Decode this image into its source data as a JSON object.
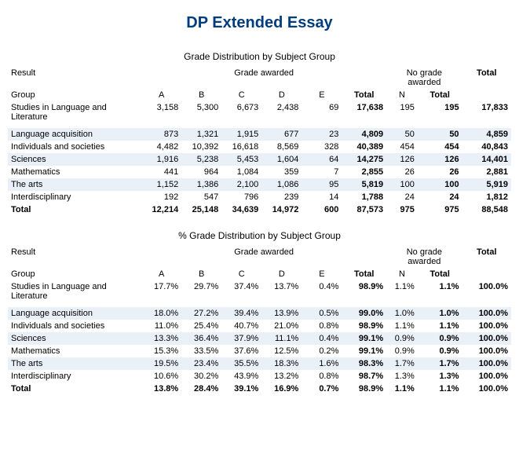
{
  "title": "DP Extended Essay",
  "table1": {
    "section": "Grade Distribution by Subject Group",
    "header": {
      "result": "Result",
      "grade_awarded": "Grade awarded",
      "no_grade_awarded": "No grade awarded",
      "total": "Total",
      "group": "Group",
      "cols": [
        "A",
        "B",
        "C",
        "D",
        "E",
        "Total",
        "N",
        "Total"
      ]
    },
    "rows": [
      {
        "label": "Studies in Language and Literature",
        "a": "3,158",
        "b": "5,300",
        "c": "6,673",
        "d": "2,438",
        "e": "69",
        "tot": "17,638",
        "n": "195",
        "ntot": "195",
        "grand": "17,833",
        "shade": false
      },
      {
        "label": "Language acquisition",
        "a": "873",
        "b": "1,321",
        "c": "1,915",
        "d": "677",
        "e": "23",
        "tot": "4,809",
        "n": "50",
        "ntot": "50",
        "grand": "4,859",
        "shade": true
      },
      {
        "label": "Individuals and societies",
        "a": "4,482",
        "b": "10,392",
        "c": "16,618",
        "d": "8,569",
        "e": "328",
        "tot": "40,389",
        "n": "454",
        "ntot": "454",
        "grand": "40,843",
        "shade": false
      },
      {
        "label": "Sciences",
        "a": "1,916",
        "b": "5,238",
        "c": "5,453",
        "d": "1,604",
        "e": "64",
        "tot": "14,275",
        "n": "126",
        "ntot": "126",
        "grand": "14,401",
        "shade": true
      },
      {
        "label": "Mathematics",
        "a": "441",
        "b": "964",
        "c": "1,084",
        "d": "359",
        "e": "7",
        "tot": "2,855",
        "n": "26",
        "ntot": "26",
        "grand": "2,881",
        "shade": false
      },
      {
        "label": "The arts",
        "a": "1,152",
        "b": "1,386",
        "c": "2,100",
        "d": "1,086",
        "e": "95",
        "tot": "5,819",
        "n": "100",
        "ntot": "100",
        "grand": "5,919",
        "shade": true
      },
      {
        "label": "Interdisciplinary",
        "a": "192",
        "b": "547",
        "c": "796",
        "d": "239",
        "e": "14",
        "tot": "1,788",
        "n": "24",
        "ntot": "24",
        "grand": "1,812",
        "shade": false
      },
      {
        "label": "Total",
        "a": "12,214",
        "b": "25,148",
        "c": "34,639",
        "d": "14,972",
        "e": "600",
        "tot": "87,573",
        "n": "975",
        "ntot": "975",
        "grand": "88,548",
        "shade": false,
        "bold": true
      }
    ]
  },
  "table2": {
    "section": "% Grade Distribution by Subject Group",
    "header": {
      "result": "Result",
      "grade_awarded": "Grade awarded",
      "no_grade_awarded": "No grade awarded",
      "total": "Total",
      "group": "Group",
      "cols": [
        "A",
        "B",
        "C",
        "D",
        "E",
        "Total",
        "N",
        "Total"
      ]
    },
    "rows": [
      {
        "label": "Studies in Language and Literature",
        "a": "17.7%",
        "b": "29.7%",
        "c": "37.4%",
        "d": "13.7%",
        "e": "0.4%",
        "tot": "98.9%",
        "n": "1.1%",
        "ntot": "1.1%",
        "grand": "100.0%",
        "shade": false
      },
      {
        "label": "Language acquisition",
        "a": "18.0%",
        "b": "27.2%",
        "c": "39.4%",
        "d": "13.9%",
        "e": "0.5%",
        "tot": "99.0%",
        "n": "1.0%",
        "ntot": "1.0%",
        "grand": "100.0%",
        "shade": true
      },
      {
        "label": "Individuals and societies",
        "a": "11.0%",
        "b": "25.4%",
        "c": "40.7%",
        "d": "21.0%",
        "e": "0.8%",
        "tot": "98.9%",
        "n": "1.1%",
        "ntot": "1.1%",
        "grand": "100.0%",
        "shade": false
      },
      {
        "label": "Sciences",
        "a": "13.3%",
        "b": "36.4%",
        "c": "37.9%",
        "d": "11.1%",
        "e": "0.4%",
        "tot": "99.1%",
        "n": "0.9%",
        "ntot": "0.9%",
        "grand": "100.0%",
        "shade": true
      },
      {
        "label": "Mathematics",
        "a": "15.3%",
        "b": "33.5%",
        "c": "37.6%",
        "d": "12.5%",
        "e": "0.2%",
        "tot": "99.1%",
        "n": "0.9%",
        "ntot": "0.9%",
        "grand": "100.0%",
        "shade": false
      },
      {
        "label": "The arts",
        "a": "19.5%",
        "b": "23.4%",
        "c": "35.5%",
        "d": "18.3%",
        "e": "1.6%",
        "tot": "98.3%",
        "n": "1.7%",
        "ntot": "1.7%",
        "grand": "100.0%",
        "shade": true
      },
      {
        "label": "Interdisciplinary",
        "a": "10.6%",
        "b": "30.2%",
        "c": "43.9%",
        "d": "13.2%",
        "e": "0.8%",
        "tot": "98.7%",
        "n": "1.3%",
        "ntot": "1.3%",
        "grand": "100.0%",
        "shade": false
      },
      {
        "label": "Total",
        "a": "13.8%",
        "b": "28.4%",
        "c": "39.1%",
        "d": "16.9%",
        "e": "0.7%",
        "tot": "98.9%",
        "n": "1.1%",
        "ntot": "1.1%",
        "grand": "100.0%",
        "shade": false,
        "bold": true
      }
    ]
  }
}
